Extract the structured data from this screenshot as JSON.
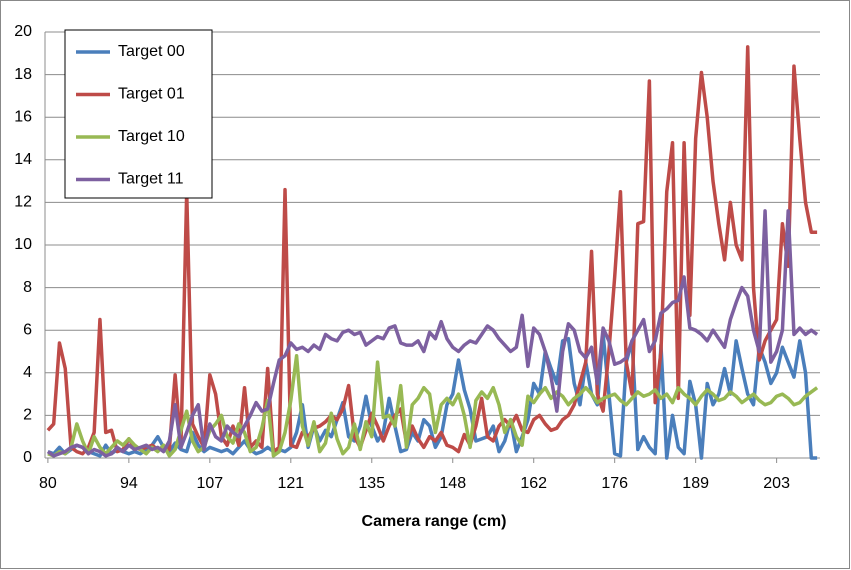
{
  "chart_data": {
    "type": "line",
    "x_label": "Camera range (cm)",
    "categories": [
      "80",
      null,
      null,
      null,
      null,
      null,
      null,
      null,
      null,
      null,
      null,
      null,
      null,
      null,
      "94",
      null,
      null,
      null,
      null,
      null,
      null,
      null,
      null,
      null,
      null,
      null,
      null,
      null,
      "107",
      null,
      null,
      null,
      null,
      null,
      null,
      null,
      null,
      null,
      null,
      null,
      null,
      null,
      "121",
      null,
      null,
      null,
      null,
      null,
      null,
      null,
      null,
      null,
      null,
      null,
      null,
      null,
      "135",
      null,
      null,
      null,
      null,
      null,
      null,
      null,
      null,
      null,
      null,
      null,
      null,
      null,
      "148",
      null,
      null,
      null,
      null,
      null,
      null,
      null,
      null,
      null,
      null,
      null,
      null,
      null,
      "162",
      null,
      null,
      null,
      null,
      null,
      null,
      null,
      null,
      null,
      null,
      null,
      null,
      null,
      "176",
      null,
      null,
      null,
      null,
      null,
      null,
      null,
      null,
      null,
      null,
      null,
      null,
      null,
      "189",
      null,
      null,
      null,
      null,
      null,
      null,
      null,
      null,
      null,
      null,
      null,
      null,
      null,
      "203",
      null,
      null,
      null,
      null,
      null,
      null,
      null
    ],
    "series": [
      {
        "name": "Target 00",
        "color": "#4a7ebb",
        "values": [
          0.3,
          0.2,
          0.5,
          0.2,
          0.4,
          0.6,
          0.5,
          0.3,
          0.2,
          0.1,
          0.6,
          0.2,
          0.4,
          0.3,
          0.2,
          0.3,
          0.2,
          0.4,
          0.6,
          1.0,
          0.5,
          0.3,
          0.7,
          0.4,
          0.3,
          1.2,
          0.6,
          0.3,
          0.5,
          0.4,
          0.3,
          0.4,
          0.2,
          0.5,
          0.8,
          0.4,
          0.2,
          0.3,
          0.5,
          0.3,
          0.4,
          0.3,
          0.5,
          1.2,
          2.5,
          0.5,
          1.5,
          0.8,
          1.3,
          1.0,
          1.8,
          2.6,
          1.0,
          0.8,
          1.5,
          2.9,
          1.5,
          0.8,
          1.2,
          2.8,
          1.5,
          0.3,
          0.4,
          1.2,
          0.8,
          1.8,
          1.5,
          0.5,
          1.0,
          2.5,
          3.0,
          4.6,
          3.2,
          2.3,
          0.8,
          0.9,
          1.0,
          1.5,
          0.3,
          0.8,
          1.8,
          0.3,
          1.0,
          1.8,
          3.5,
          3.0,
          5.0,
          4.2,
          3.5,
          5.5,
          5.6,
          3.5,
          2.5,
          4.5,
          3.0,
          2.5,
          5.8,
          3.0,
          0.2,
          0.1,
          4.5,
          5.5,
          0.4,
          1.0,
          0.5,
          0.2,
          5.3,
          0.0,
          2.0,
          0.5,
          0.2,
          3.6,
          2.5,
          0.0,
          3.5,
          2.5,
          3.0,
          4.2,
          3.0,
          5.5,
          4.2,
          3.0,
          2.5,
          5.2,
          4.5,
          3.5,
          4.0,
          5.2,
          4.5,
          3.8,
          5.5,
          4.0,
          0.0,
          0.0
        ]
      },
      {
        "name": "Target 01",
        "color": "#be4b48",
        "values": [
          1.3,
          1.6,
          5.4,
          4.2,
          0.5,
          0.3,
          0.2,
          0.5,
          1.2,
          6.5,
          1.2,
          1.3,
          0.3,
          0.4,
          0.9,
          0.5,
          0.4,
          0.5,
          0.6,
          0.4,
          0.5,
          0.4,
          3.9,
          0.5,
          12.5,
          1.6,
          1.0,
          0.5,
          3.9,
          3.0,
          1.0,
          0.6,
          1.5,
          0.6,
          3.3,
          0.5,
          0.8,
          0.5,
          4.2,
          0.3,
          0.5,
          12.6,
          0.6,
          0.5,
          1.2,
          1.0,
          1.4,
          1.5,
          1.7,
          2.0,
          1.8,
          2.3,
          3.4,
          1.0,
          0.5,
          1.3,
          2.1,
          1.5,
          0.8,
          1.5,
          2.0,
          2.3,
          0.7,
          1.5,
          0.9,
          0.5,
          1.0,
          0.8,
          1.2,
          0.6,
          0.5,
          0.3,
          1.1,
          0.6,
          1.5,
          2.8,
          1.0,
          0.8,
          1.5,
          1.8,
          1.5,
          2.0,
          1.3,
          1.2,
          1.8,
          2.0,
          1.6,
          1.3,
          1.4,
          1.8,
          2.0,
          2.5,
          3.5,
          4.5,
          9.7,
          3.0,
          2.2,
          5.0,
          8.5,
          12.5,
          4.5,
          3.0,
          11.0,
          11.1,
          17.7,
          2.6,
          5.0,
          12.5,
          14.8,
          2.8,
          14.8,
          6.7,
          15.0,
          18.1,
          16.0,
          13.0,
          11.0,
          9.3,
          12.0,
          10.0,
          9.3,
          19.3,
          8.0,
          4.6,
          5.5,
          6.0,
          6.5,
          11.0,
          9.0,
          18.4,
          15.0,
          12.0,
          10.6,
          10.6
        ]
      },
      {
        "name": "Target 10",
        "color": "#98b954",
        "values": [
          0.2,
          0.1,
          0.3,
          0.2,
          0.5,
          1.6,
          0.8,
          0.2,
          1.0,
          0.5,
          0.2,
          0.5,
          0.8,
          0.6,
          0.9,
          0.6,
          0.4,
          0.2,
          0.5,
          0.3,
          0.6,
          0.1,
          0.4,
          1.3,
          2.2,
          0.8,
          0.3,
          0.5,
          1.3,
          1.6,
          2.0,
          1.0,
          0.7,
          1.6,
          1.2,
          0.3,
          0.5,
          1.4,
          2.7,
          0.1,
          0.3,
          1.2,
          2.7,
          4.8,
          1.5,
          0.6,
          1.7,
          0.3,
          0.7,
          2.1,
          0.9,
          0.2,
          0.5,
          1.6,
          0.4,
          1.7,
          1.0,
          4.5,
          1.9,
          2.0,
          1.5,
          3.4,
          0.5,
          2.5,
          2.8,
          3.3,
          3.0,
          1.2,
          2.5,
          2.8,
          2.5,
          3.0,
          2.0,
          0.5,
          2.7,
          3.1,
          2.8,
          3.3,
          2.5,
          1.2,
          1.8,
          1.0,
          0.6,
          2.9,
          2.6,
          3.0,
          3.3,
          2.8,
          3.1,
          2.9,
          2.5,
          2.8,
          3.0,
          3.3,
          3.0,
          2.6,
          2.8,
          2.9,
          3.0,
          2.7,
          2.5,
          2.8,
          3.1,
          2.9,
          3.0,
          3.2,
          2.8,
          3.0,
          2.6,
          3.3,
          3.0,
          2.8,
          2.5,
          2.9,
          3.2,
          3.0,
          2.7,
          2.8,
          3.1,
          2.9,
          2.6,
          2.8,
          3.0,
          2.7,
          2.5,
          2.6,
          2.9,
          3.0,
          2.8,
          2.5,
          2.6,
          2.9,
          3.1,
          3.3
        ]
      },
      {
        "name": "Target 11",
        "color": "#7d60a0",
        "values": [
          0.3,
          0.1,
          0.2,
          0.3,
          0.5,
          0.6,
          0.5,
          0.2,
          0.4,
          0.3,
          0.1,
          0.2,
          0.5,
          0.3,
          0.6,
          0.4,
          0.5,
          0.6,
          0.4,
          0.5,
          0.3,
          0.8,
          2.5,
          0.5,
          1.2,
          2.0,
          2.5,
          0.4,
          1.6,
          1.0,
          0.8,
          1.5,
          1.2,
          1.0,
          1.5,
          2.0,
          2.6,
          2.2,
          2.3,
          3.5,
          4.6,
          4.8,
          5.4,
          5.1,
          5.2,
          5.0,
          5.3,
          5.1,
          5.8,
          5.6,
          5.5,
          5.9,
          6.0,
          5.8,
          5.9,
          5.3,
          5.5,
          5.7,
          5.6,
          6.1,
          6.2,
          5.4,
          5.3,
          5.3,
          5.5,
          5.0,
          5.9,
          5.6,
          6.4,
          5.6,
          5.2,
          5.0,
          5.3,
          5.5,
          5.4,
          5.8,
          6.2,
          6.0,
          5.6,
          5.3,
          5.0,
          5.2,
          6.7,
          4.3,
          6.1,
          5.8,
          5.0,
          3.8,
          2.2,
          5.0,
          6.3,
          6.0,
          5.0,
          4.7,
          5.2,
          3.5,
          6.1,
          5.5,
          4.4,
          4.5,
          4.7,
          5.5,
          6.0,
          6.5,
          5.0,
          5.5,
          6.8,
          7.0,
          7.3,
          7.4,
          8.5,
          6.1,
          6.0,
          5.8,
          5.5,
          6.0,
          5.6,
          5.2,
          6.5,
          7.3,
          8.0,
          7.6,
          6.0,
          5.0,
          11.6,
          4.5,
          5.0,
          6.0,
          11.6,
          5.8,
          6.1,
          5.8,
          6.0,
          5.8
        ]
      }
    ],
    "ylim": [
      0,
      20
    ],
    "yticks": [
      0,
      2,
      4,
      6,
      8,
      10,
      12,
      14,
      16,
      18,
      20
    ],
    "grid": true,
    "legend": "top-left"
  }
}
